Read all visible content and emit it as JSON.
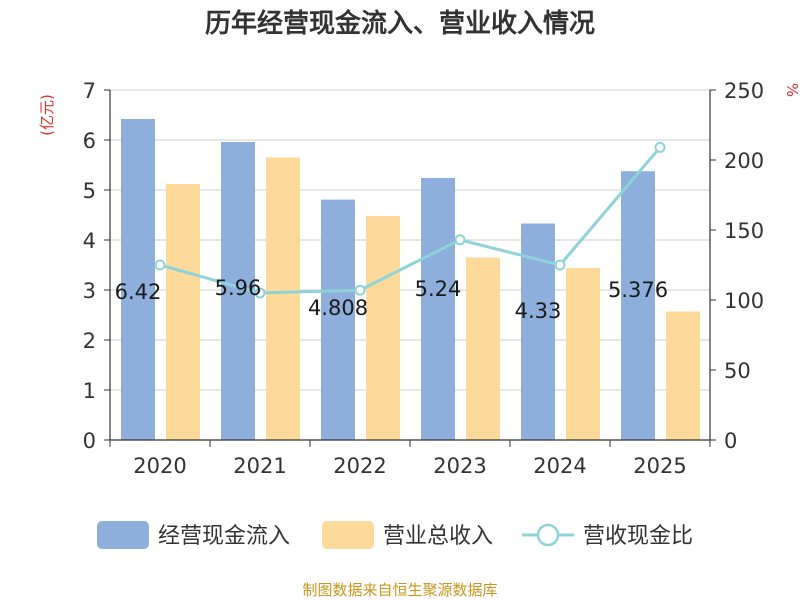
{
  "chart_data": {
    "type": "bar",
    "title": "历年经营现金流入、营业收入情况",
    "categories": [
      "2020",
      "2021",
      "2022",
      "2023",
      "2024",
      "2025"
    ],
    "series": [
      {
        "name": "经营现金流入",
        "type": "bar",
        "axis": "left",
        "color": "#8eaedb",
        "values": [
          6.42,
          5.96,
          4.808,
          5.24,
          4.33,
          5.376
        ]
      },
      {
        "name": "营业总收入",
        "type": "bar",
        "axis": "left",
        "color": "#fdd99a",
        "values": [
          5.12,
          5.65,
          4.48,
          3.65,
          3.44,
          2.57
        ]
      },
      {
        "name": "营收现金比",
        "type": "line",
        "axis": "right",
        "color": "#8fd3da",
        "values": [
          125,
          105,
          107,
          143,
          125,
          209
        ]
      }
    ],
    "data_labels": [
      "6.42",
      "5.96",
      "4.808",
      "5.24",
      "4.33",
      "5.376"
    ],
    "y_left": {
      "label": "(亿元)",
      "range": [
        0,
        7
      ],
      "ticks": [
        "0",
        "1",
        "2",
        "3",
        "4",
        "5",
        "6",
        "7"
      ]
    },
    "y_right": {
      "label": "%",
      "range": [
        0,
        250
      ],
      "ticks": [
        "0",
        "50",
        "100",
        "150",
        "200",
        "250"
      ]
    },
    "grid": true,
    "legend_position": "bottom"
  },
  "source": "制图数据来自恒生聚源数据库"
}
